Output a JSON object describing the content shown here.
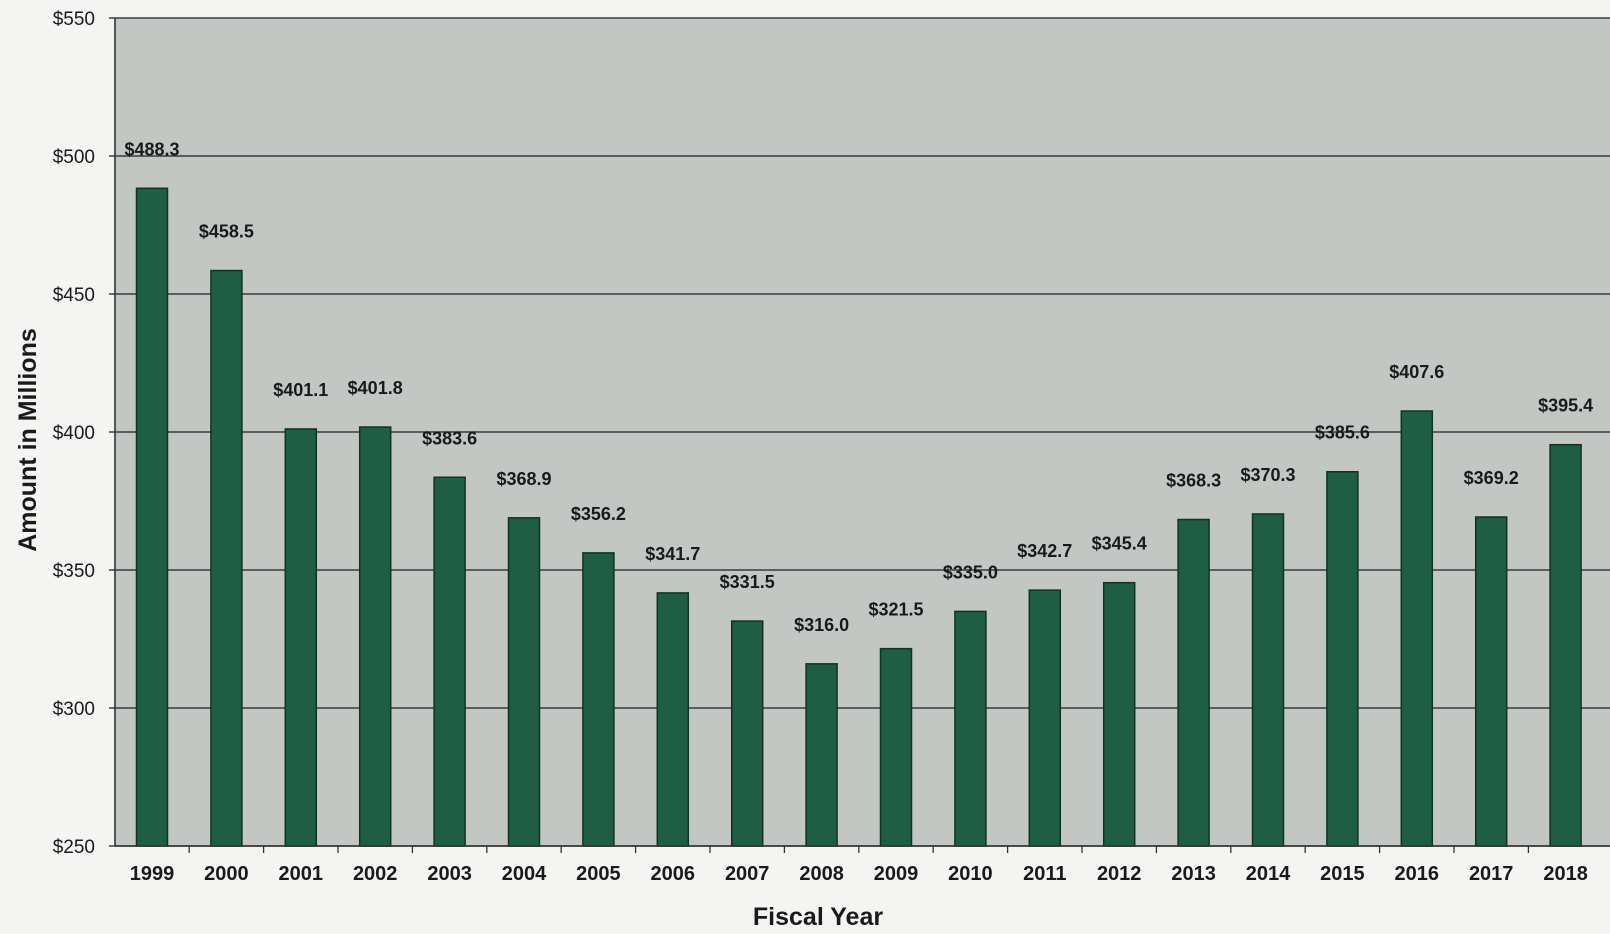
{
  "chart_data": {
    "type": "bar",
    "title": "",
    "xlabel": "Fiscal Year",
    "ylabel": "Amount in Millions",
    "ylim": [
      250,
      550
    ],
    "y_ticks": [
      "$250",
      "$300",
      "$350",
      "$400",
      "$450",
      "$500",
      "$550"
    ],
    "y_tick_values": [
      250,
      300,
      350,
      400,
      450,
      500,
      550
    ],
    "categories": [
      "1999",
      "2000",
      "2001",
      "2002",
      "2003",
      "2004",
      "2005",
      "2006",
      "2007",
      "2008",
      "2009",
      "2010",
      "2011",
      "2012",
      "2013",
      "2014",
      "2015",
      "2016",
      "2017",
      "2018"
    ],
    "values": [
      488.3,
      458.5,
      401.1,
      401.8,
      383.6,
      368.9,
      356.2,
      341.7,
      331.5,
      316.0,
      321.5,
      335.0,
      342.7,
      345.4,
      368.3,
      370.3,
      385.6,
      407.6,
      369.2,
      395.4
    ],
    "data_labels": [
      "$488.3",
      "$458.5",
      "$401.1",
      "$401.8",
      "$383.6",
      "$368.9",
      "$356.2",
      "$341.7",
      "$331.5",
      "$316.0",
      "$321.5",
      "$335.0",
      "$342.7",
      "$345.4",
      "$368.3",
      "$370.3",
      "$385.6",
      "$407.6",
      "$369.2",
      "$395.4"
    ],
    "grid": true,
    "legend": "none",
    "colors": {
      "bar": "#1e5e45",
      "bar_edge": "#0f3324",
      "plot_background": "#c2c7c4",
      "gridline": "#3a3a3a"
    }
  }
}
